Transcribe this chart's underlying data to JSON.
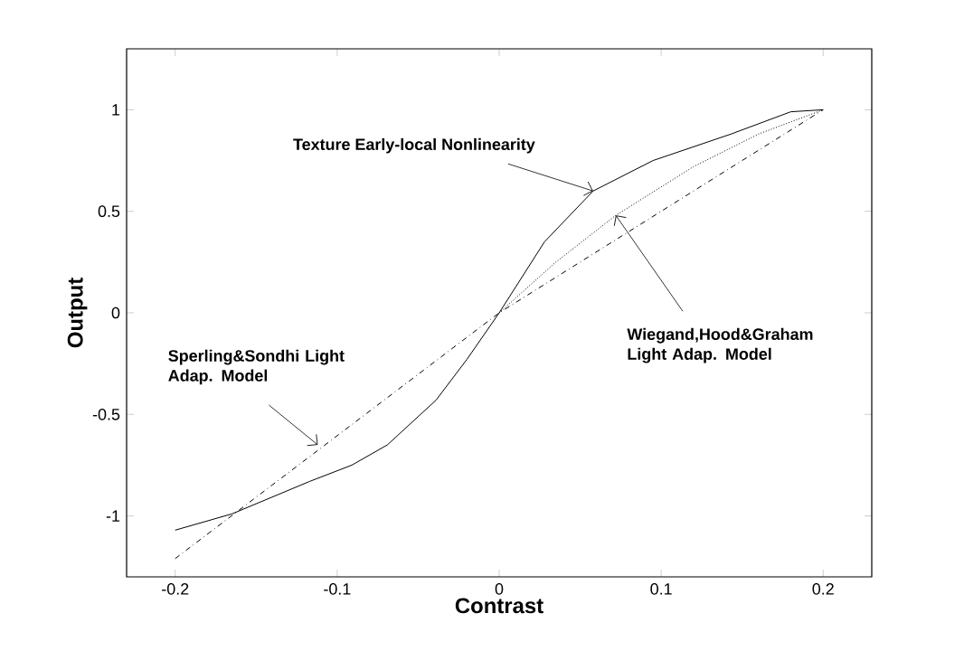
{
  "chart_data": {
    "type": "line",
    "xlabel": "Contrast",
    "ylabel": "Output",
    "xlim": [
      -0.23,
      0.23
    ],
    "ylim": [
      -1.3,
      1.3
    ],
    "xticks": [
      -0.2,
      -0.1,
      0,
      0.1,
      0.2
    ],
    "yticks": [
      -1,
      -0.5,
      0,
      0.5,
      1
    ],
    "grid": false,
    "legend": false,
    "marker": "none",
    "series": [
      {
        "color": "#000000",
        "line_style": "solid",
        "x": [
          -0.2,
          -0.165,
          -0.117,
          -0.091,
          -0.069,
          -0.039,
          -0.02,
          0,
          0.028,
          0.058,
          0.095,
          0.143,
          0.18,
          0.2
        ],
        "values": [
          -1.07,
          -0.99,
          -0.83,
          -0.75,
          -0.65,
          -0.43,
          -0.23,
          0,
          0.35,
          0.6,
          0.75,
          0.88,
          0.99,
          1.0
        ]
      },
      {
        "color": "#000000",
        "line_style": "dashed",
        "x": [
          -0.2,
          0,
          0.2
        ],
        "values": [
          -1.21,
          0,
          1.0
        ]
      },
      {
        "color": "#000000",
        "line_style": "dotted",
        "x": [
          0,
          0.035,
          0.072,
          0.12,
          0.16,
          0.2
        ],
        "values": [
          0,
          0.25,
          0.48,
          0.72,
          0.88,
          1.0
        ]
      }
    ],
    "annotations": [
      {
        "text": "Texture Early-local Nonlinearity",
        "x": 0.058,
        "y": 0.6
      },
      {
        "text": "Sperling&Sondhi Light Adap. Model",
        "x": -0.112,
        "y": -0.65
      },
      {
        "text": "Wiegand,Hood&Graham Light Adap. Model",
        "x": 0.072,
        "y": 0.48
      }
    ]
  }
}
